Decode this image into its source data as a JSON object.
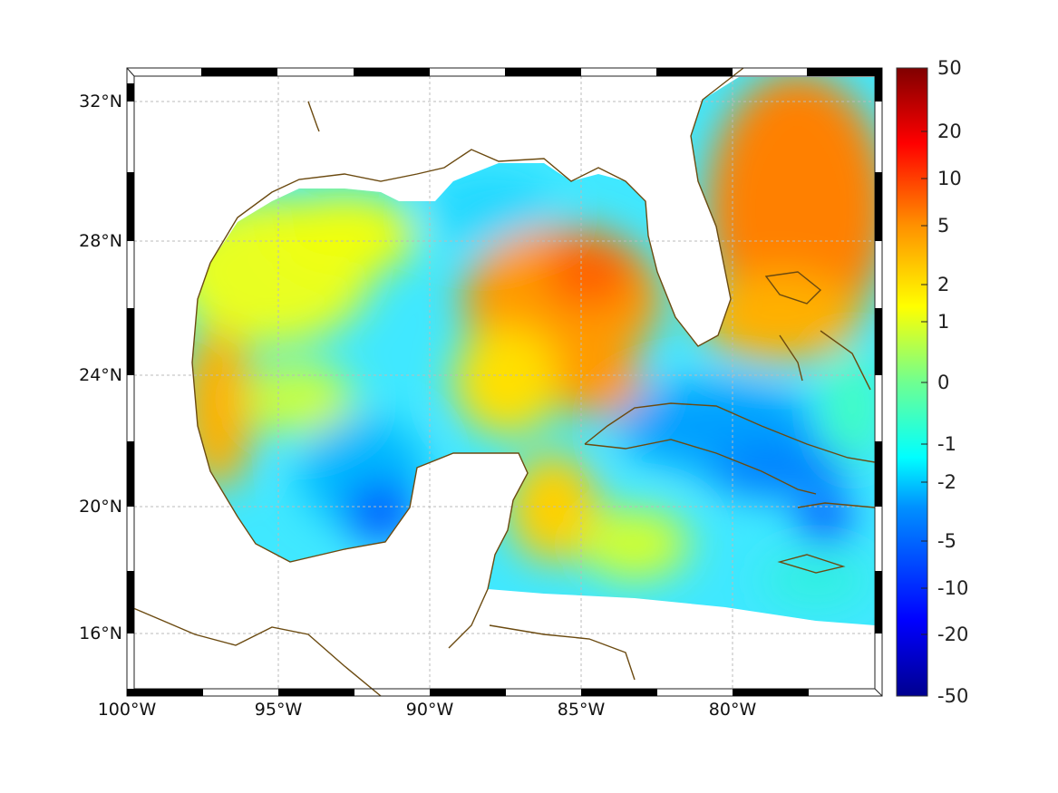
{
  "map": {
    "lat_labels": [
      "32°N",
      "28°N",
      "24°N",
      "20°N",
      "16°N"
    ],
    "lon_labels": [
      "100°W",
      "95°W",
      "90°W",
      "85°W",
      "80°W"
    ],
    "land_color": "#ffffff",
    "coast_color": "#6b4a10"
  },
  "colorbar": {
    "ticks": [
      "50",
      "20",
      "10",
      "5",
      "2",
      "1",
      "0",
      "-1",
      "-2",
      "-5",
      "-10",
      "-20",
      "-50"
    ],
    "colormap": "jet",
    "range": [
      -50,
      50
    ]
  }
}
